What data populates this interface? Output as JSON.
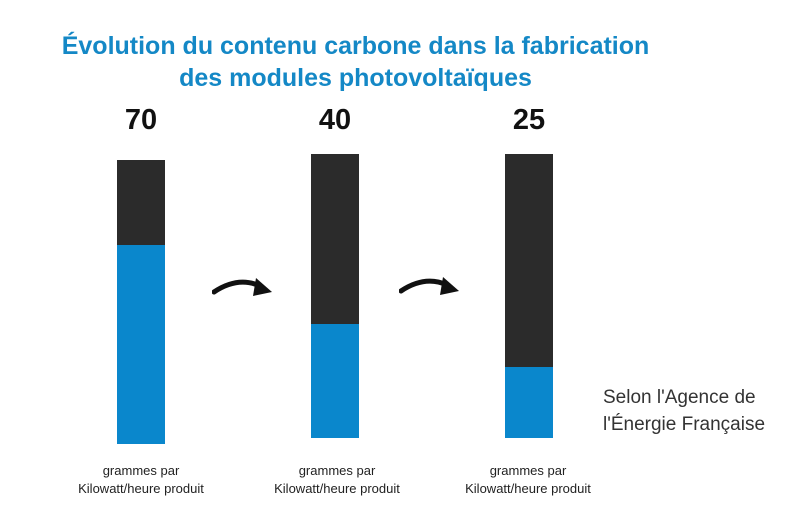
{
  "title_line1": "Évolution du contenu carbone dans la fabrication",
  "title_line2": "des modules photovoltaïques",
  "chart_data": {
    "type": "bar",
    "categories": [
      "70",
      "40",
      "25"
    ],
    "values": [
      70,
      40,
      25
    ],
    "unit_line1": "grammes par",
    "unit_line2": "Kilowatt/heure produit",
    "colors": {
      "fill": "#0a87cc",
      "track": "#2b2b2b",
      "title": "#1488c6"
    }
  },
  "source_line1": "Selon l'Agence de",
  "source_line2": "l'Énergie Française",
  "icons": [
    "curved-arrow-right-icon",
    "curved-arrow-right-icon"
  ]
}
